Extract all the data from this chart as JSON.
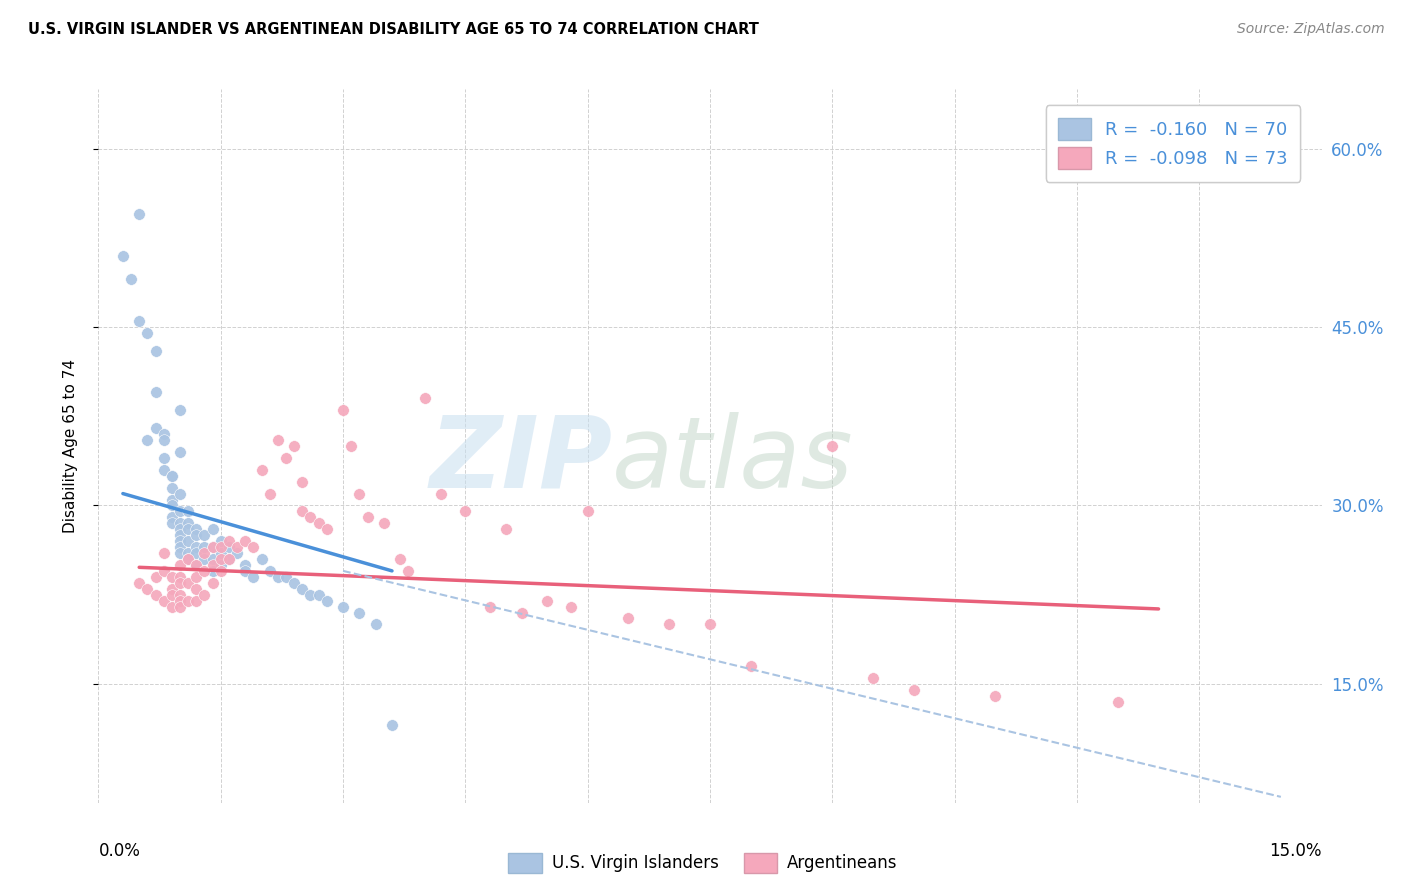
{
  "title": "U.S. VIRGIN ISLANDER VS ARGENTINEAN DISABILITY AGE 65 TO 74 CORRELATION CHART",
  "source": "Source: ZipAtlas.com",
  "ylabel": "Disability Age 65 to 74",
  "legend_label1": "R =  -0.160   N = 70",
  "legend_label2": "R =  -0.098   N = 73",
  "legend_footer1": "U.S. Virgin Islanders",
  "legend_footer2": "Argentineans",
  "watermark_zip": "ZIP",
  "watermark_atlas": "atlas",
  "blue_color": "#aac4e2",
  "pink_color": "#f5a8bc",
  "blue_line_color": "#4a90d9",
  "pink_line_color": "#e8607a",
  "dashed_line_color": "#aac4e2",
  "xmin": 0.0,
  "xmax": 0.15,
  "ymin": 0.05,
  "ymax": 0.65,
  "blue_dots_x": [
    0.003,
    0.004,
    0.005,
    0.005,
    0.006,
    0.006,
    0.007,
    0.007,
    0.007,
    0.008,
    0.008,
    0.008,
    0.008,
    0.009,
    0.009,
    0.009,
    0.009,
    0.009,
    0.009,
    0.009,
    0.01,
    0.01,
    0.01,
    0.01,
    0.01,
    0.01,
    0.01,
    0.01,
    0.01,
    0.01,
    0.011,
    0.011,
    0.011,
    0.011,
    0.011,
    0.011,
    0.012,
    0.012,
    0.012,
    0.012,
    0.012,
    0.013,
    0.013,
    0.013,
    0.014,
    0.014,
    0.014,
    0.014,
    0.015,
    0.015,
    0.015,
    0.016,
    0.016,
    0.017,
    0.018,
    0.018,
    0.019,
    0.02,
    0.021,
    0.022,
    0.023,
    0.024,
    0.025,
    0.026,
    0.027,
    0.028,
    0.03,
    0.032,
    0.034,
    0.036
  ],
  "blue_dots_y": [
    0.51,
    0.49,
    0.545,
    0.455,
    0.445,
    0.355,
    0.43,
    0.395,
    0.365,
    0.36,
    0.355,
    0.34,
    0.33,
    0.325,
    0.325,
    0.315,
    0.305,
    0.3,
    0.29,
    0.285,
    0.38,
    0.345,
    0.31,
    0.295,
    0.285,
    0.28,
    0.275,
    0.27,
    0.265,
    0.26,
    0.295,
    0.285,
    0.28,
    0.27,
    0.26,
    0.255,
    0.28,
    0.275,
    0.265,
    0.26,
    0.25,
    0.275,
    0.265,
    0.255,
    0.28,
    0.265,
    0.255,
    0.245,
    0.27,
    0.26,
    0.25,
    0.265,
    0.255,
    0.26,
    0.25,
    0.245,
    0.24,
    0.255,
    0.245,
    0.24,
    0.24,
    0.235,
    0.23,
    0.225,
    0.225,
    0.22,
    0.215,
    0.21,
    0.2,
    0.115
  ],
  "pink_dots_x": [
    0.005,
    0.006,
    0.007,
    0.007,
    0.008,
    0.008,
    0.008,
    0.009,
    0.009,
    0.009,
    0.009,
    0.01,
    0.01,
    0.01,
    0.01,
    0.01,
    0.01,
    0.011,
    0.011,
    0.011,
    0.012,
    0.012,
    0.012,
    0.012,
    0.013,
    0.013,
    0.013,
    0.014,
    0.014,
    0.014,
    0.015,
    0.015,
    0.015,
    0.016,
    0.016,
    0.017,
    0.018,
    0.019,
    0.02,
    0.021,
    0.022,
    0.023,
    0.024,
    0.025,
    0.025,
    0.026,
    0.027,
    0.028,
    0.03,
    0.031,
    0.032,
    0.033,
    0.035,
    0.037,
    0.038,
    0.04,
    0.042,
    0.045,
    0.048,
    0.05,
    0.052,
    0.055,
    0.058,
    0.06,
    0.065,
    0.07,
    0.075,
    0.08,
    0.09,
    0.095,
    0.1,
    0.11,
    0.125
  ],
  "pink_dots_y": [
    0.235,
    0.23,
    0.24,
    0.225,
    0.26,
    0.245,
    0.22,
    0.24,
    0.23,
    0.225,
    0.215,
    0.25,
    0.24,
    0.235,
    0.225,
    0.22,
    0.215,
    0.255,
    0.235,
    0.22,
    0.25,
    0.24,
    0.23,
    0.22,
    0.26,
    0.245,
    0.225,
    0.265,
    0.25,
    0.235,
    0.265,
    0.255,
    0.245,
    0.27,
    0.255,
    0.265,
    0.27,
    0.265,
    0.33,
    0.31,
    0.355,
    0.34,
    0.35,
    0.32,
    0.295,
    0.29,
    0.285,
    0.28,
    0.38,
    0.35,
    0.31,
    0.29,
    0.285,
    0.255,
    0.245,
    0.39,
    0.31,
    0.295,
    0.215,
    0.28,
    0.21,
    0.22,
    0.215,
    0.295,
    0.205,
    0.2,
    0.2,
    0.165,
    0.35,
    0.155,
    0.145,
    0.14,
    0.135
  ],
  "blue_trend_x": [
    0.003,
    0.036
  ],
  "blue_trend_y": [
    0.31,
    0.245
  ],
  "pink_trend_x": [
    0.005,
    0.13
  ],
  "pink_trend_y": [
    0.248,
    0.213
  ],
  "dashed_trend_x": [
    0.03,
    0.145
  ],
  "dashed_trend_y": [
    0.245,
    0.055
  ]
}
